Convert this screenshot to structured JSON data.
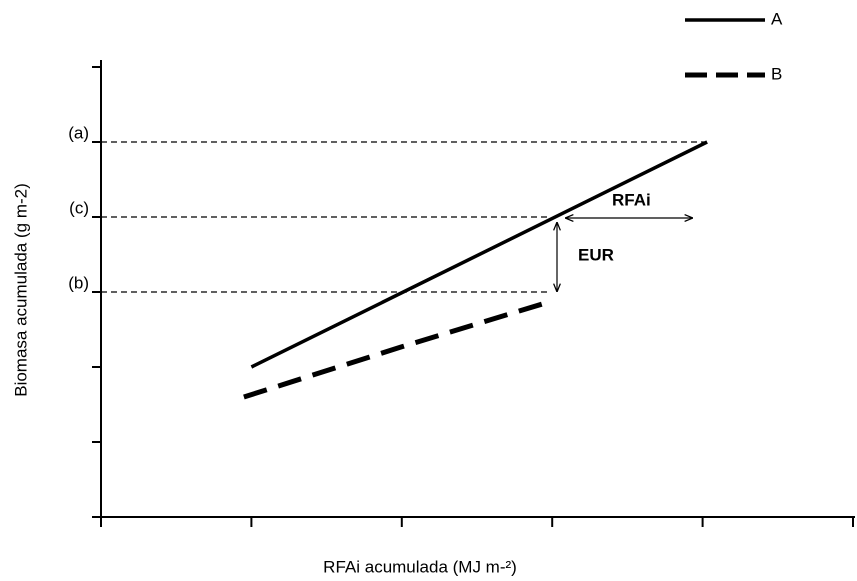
{
  "chart_data": {
    "type": "line",
    "x_label": "RFAi acumulada (MJ m-²)",
    "y_label": "Biomasa acumulada (g m-2)",
    "xlim": [
      0,
      5
    ],
    "ylim": [
      0,
      6
    ],
    "xticks": [
      {
        "value": 0,
        "label": null
      },
      {
        "value": 1,
        "label": null
      },
      {
        "value": 2,
        "label": null
      },
      {
        "value": 3,
        "label": null
      },
      {
        "value": 4,
        "label": null
      },
      {
        "value": 5,
        "label": null
      }
    ],
    "yticks": [
      {
        "value": 0,
        "label": null
      },
      {
        "value": 1,
        "label": null
      },
      {
        "value": 2,
        "label": null
      },
      {
        "value": 3,
        "label": "(b)"
      },
      {
        "value": 4,
        "label": "(c)"
      },
      {
        "value": 5,
        "label": "(a)"
      },
      {
        "value": 6,
        "label": null
      }
    ],
    "series": [
      {
        "name": "A",
        "color": "#000000",
        "x": [
          1,
          4.03
        ],
        "values": [
          2,
          5
        ]
      },
      {
        "name": "B",
        "color": "#000000",
        "x": [
          0.95,
          2,
          3
        ],
        "values": [
          1.6,
          2.27,
          2.88
        ]
      }
    ],
    "annotations": [
      "RFAi",
      "EUR"
    ]
  }
}
